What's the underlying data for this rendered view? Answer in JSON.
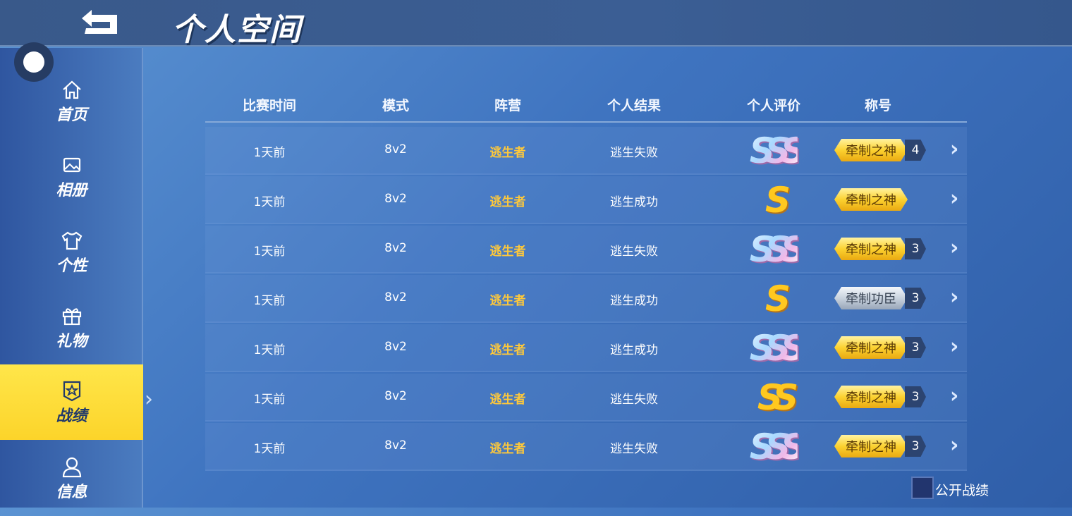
{
  "header": {
    "title": "个人空间",
    "back_icon": "back-arrow-icon"
  },
  "sidebar": {
    "items": [
      {
        "label": "首页",
        "icon": "home-icon"
      },
      {
        "label": "相册",
        "icon": "image-icon"
      },
      {
        "label": "个性",
        "icon": "shirt-icon"
      },
      {
        "label": "礼物",
        "icon": "gift-icon"
      },
      {
        "label": "战绩",
        "icon": "badge-star-icon",
        "active": true
      },
      {
        "label": "信息",
        "icon": "user-icon"
      }
    ]
  },
  "table": {
    "columns": [
      "比赛时间",
      "模式",
      "阵营",
      "个人结果",
      "个人评价",
      "称号"
    ],
    "rows": [
      {
        "time": "1天前",
        "mode": "8v2",
        "camp": "逃生者",
        "result": "逃生失败",
        "grade": "SSS",
        "title": "牵制之神",
        "title_tier": "gold",
        "count": "4"
      },
      {
        "time": "1天前",
        "mode": "8v2",
        "camp": "逃生者",
        "result": "逃生成功",
        "grade": "S",
        "title": "牵制之神",
        "title_tier": "gold",
        "count": ""
      },
      {
        "time": "1天前",
        "mode": "8v2",
        "camp": "逃生者",
        "result": "逃生失败",
        "grade": "SSS",
        "title": "牵制之神",
        "title_tier": "gold",
        "count": "3"
      },
      {
        "time": "1天前",
        "mode": "8v2",
        "camp": "逃生者",
        "result": "逃生成功",
        "grade": "S",
        "title": "牵制功臣",
        "title_tier": "silver",
        "count": "3"
      },
      {
        "time": "1天前",
        "mode": "8v2",
        "camp": "逃生者",
        "result": "逃生成功",
        "grade": "SSS",
        "title": "牵制之神",
        "title_tier": "gold",
        "count": "3"
      },
      {
        "time": "1天前",
        "mode": "8v2",
        "camp": "逃生者",
        "result": "逃生失败",
        "grade": "SS",
        "title": "牵制之神",
        "title_tier": "gold",
        "count": "3"
      },
      {
        "time": "1天前",
        "mode": "8v2",
        "camp": "逃生者",
        "result": "逃生失败",
        "grade": "SSS",
        "title": "牵制之神",
        "title_tier": "gold",
        "count": "3"
      }
    ]
  },
  "footer": {
    "public_record_label": "公开战绩",
    "public_record_checked": false
  },
  "colors": {
    "active_tab": "#fcd42a",
    "camp": "#ffc93a",
    "header": "#3b5e94"
  }
}
